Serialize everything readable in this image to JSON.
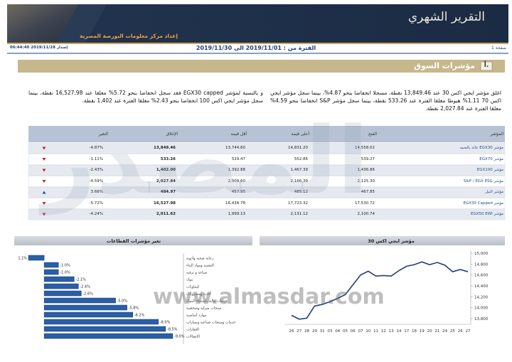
{
  "header": {
    "title": "التقرير الشهري",
    "subtitle": "إعداد مركز معلومات البورصة المصرية"
  },
  "meta": {
    "page": "صفحة 1",
    "period": "الفترة من : 2019/11/01 الى 2019/11/30",
    "issued": "إصدار 2019/11/28 06:44:40"
  },
  "section": {
    "number": "أ.",
    "title": "مؤشرات السوق"
  },
  "paragraphs": [
    "اغلق مؤشر ايجي اكس 30 عند 13,849.46 نقطة، مسجلا انخفاضا بنحو 4.87%، بينما سجل مؤشر ايجي اكس 70 1.11% هبوطا مغلقا الفترة عند 533.26 نقطة، بينما سجل مؤشر S&P انخفاضا بنحو 4.59% مغلقا الفترة عند 2,027.84 نقطة.",
    "و بالنسبة لمؤشر EGX30 capped فقد سجل انخفاضا بنحو 5.72% مغلقا عند 16,527.98 نقطة، بينما سجل مؤشر ايجي اكس 100 انخفاضا بنحو 2.43% مغلقا الفترة عند 1,402 نقطة."
  ],
  "table": {
    "columns": [
      "المؤشر",
      "الفتح",
      "أعلى قيمة",
      "أقل قيمة",
      "الإغلاق",
      "التغير"
    ],
    "rows": [
      [
        "مؤشر EGX30 عائد بالجنيه",
        "14,558.02",
        "14,831.20",
        "13,744.60",
        "13,849.46",
        "-4.87%"
      ],
      [
        "مؤشر EGX70",
        "539.27",
        "552.86",
        "529.47",
        "533.26",
        "-1.11%"
      ],
      [
        "مؤشر EGX100",
        "1,436.86",
        "1,467.39",
        "1,392.88",
        "1,402.00",
        "-2.43%"
      ],
      [
        "مؤشر S&P / EGX ESG",
        "2,125.30",
        "2,166.39",
        "2,009.60",
        "2,027.84",
        "-4.59%"
      ],
      [
        "مؤشر النيل",
        "467.85",
        "485.12",
        "457.95",
        "484.97",
        "3.66%"
      ],
      [
        "مؤشر EGX30 Capped",
        "17,530.72",
        "17,723.32",
        "16,438.78",
        "16,527.98",
        "-5.72%"
      ],
      [
        "مؤشر EGX50 EWI",
        "2,100.74",
        "2,131.12",
        "1,999.13",
        "2,011.62",
        "-4.24%"
      ]
    ],
    "trend": [
      "down",
      "down",
      "down",
      "down",
      "up",
      "down",
      "down"
    ]
  },
  "watermark": {
    "logo": "المصدر",
    "url": "www.almasdar.com"
  },
  "chart_data": [
    {
      "type": "line",
      "title": "مؤشر ايجي اكس 30",
      "color": "#1f3f7a",
      "categories": [
        "26",
        "27",
        "28",
        "29",
        "31",
        "03",
        "04",
        "05",
        "06",
        "07",
        "10",
        "11",
        "12",
        "13",
        "14",
        "17",
        "18",
        "19",
        "20",
        "21",
        "24",
        "25",
        "26",
        "27"
      ],
      "values": [
        13860,
        13790,
        13810,
        14030,
        14060,
        14110,
        14170,
        14240,
        14420,
        14600,
        14670,
        14580,
        14590,
        14580,
        14680,
        14760,
        14790,
        14840,
        14790,
        14830,
        14780,
        14660,
        14700,
        14660
      ],
      "ylim": [
        13700,
        15000
      ],
      "yticks": [
        {
          "value": 13800,
          "label": "13,800"
        },
        {
          "value": 14000,
          "label": "14,000"
        },
        {
          "value": 14200,
          "label": "14,200"
        },
        {
          "value": 14400,
          "label": "14,400"
        },
        {
          "value": 14600,
          "label": "14,600"
        },
        {
          "value": 14800,
          "label": "14,800"
        },
        {
          "value": 15000,
          "label": "15,000"
        }
      ]
    },
    {
      "type": "bar",
      "orientation": "horizontal",
      "title": "تغير مؤشرات القطاعات",
      "color": "#2a5fa6",
      "categories": [
        "رعاية صحية وأدوية",
        "التشييد ومواد البناء",
        "سياحة و ترفيه",
        "بنوك",
        "كيماويات",
        "أغذية ومشروبات",
        "خدمات مالية باستثناء البنوك",
        "منتجات منزلية وشخصية",
        "موارد أساسية",
        "خدمات ومنتجات صناعية وسيارات",
        "العقارات",
        "الاتصالات"
      ],
      "values": [
        1.1,
        -1.0,
        -1.0,
        -2.1,
        -2.4,
        -2.6,
        -5.0,
        -5.8,
        -6.2,
        -8.0,
        -8.5,
        -9.0
      ],
      "value_labels": [
        "1.1%",
        "-1.0%",
        "-1.0%",
        "-2.1%",
        "-2.4%",
        "-2.6%",
        "-5.0%",
        "-5.8%",
        "-6.2%",
        "-8.0%",
        "-8.5%",
        "-9.0%"
      ],
      "xlim": [
        1.6,
        -9.6
      ]
    }
  ]
}
